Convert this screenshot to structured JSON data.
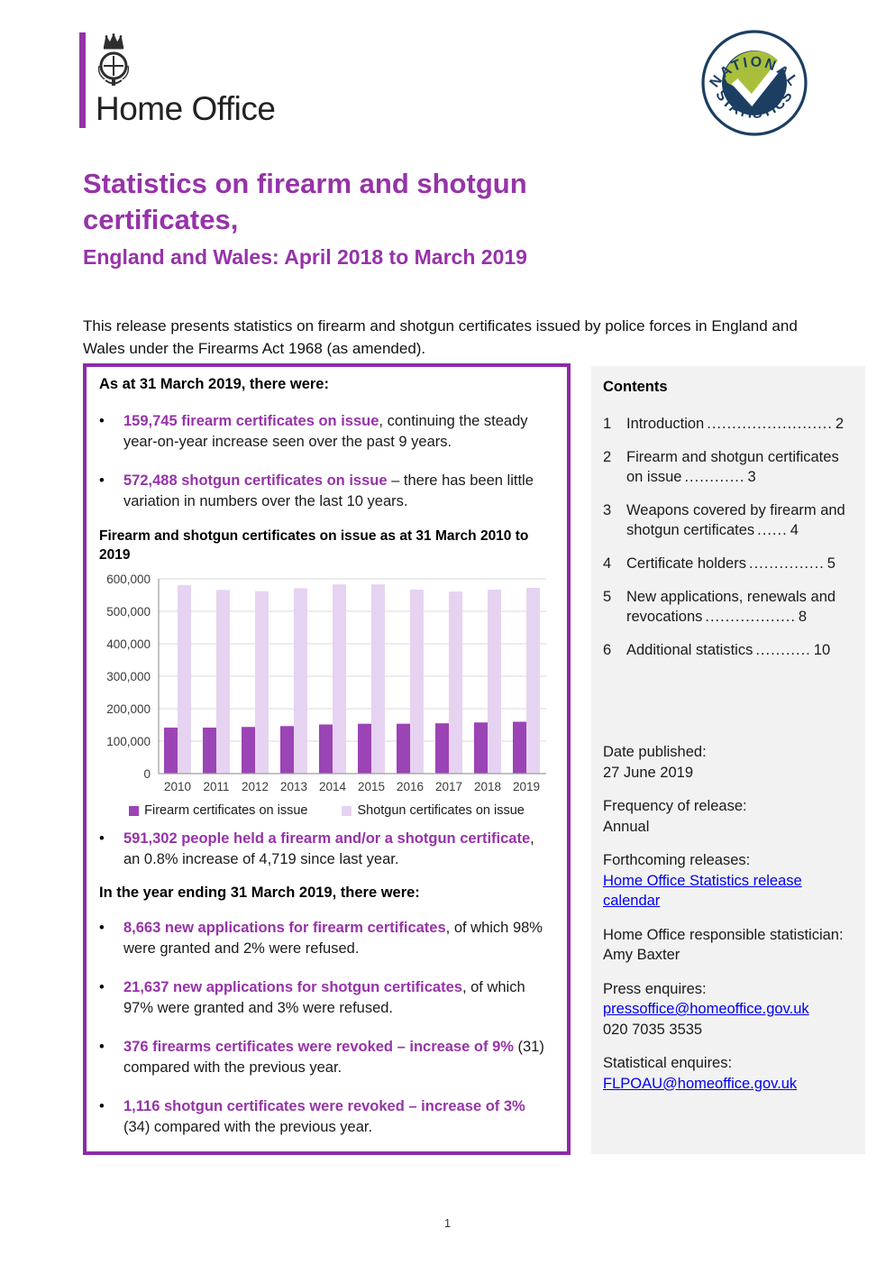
{
  "colors": {
    "accent_purple": "#9633a8",
    "box_border_purple": "#8d2ba6",
    "bar_firearm": "#9b44b5",
    "bar_shotgun": "#e6d3f1",
    "panel_gray": "#f2f2f2",
    "link_blue": "#0000ee",
    "badge_navy": "#1c3e63",
    "badge_green": "#a9bf3c"
  },
  "header": {
    "brand": "Home Office",
    "crest_icon": "royal-crest-icon",
    "badge_icon": "national-statistics-badge-icon",
    "badge_top": "NATIONAL",
    "badge_bottom": "STATISTICS"
  },
  "title": {
    "line1": "Statistics on firearm and shotgun",
    "line2": "certificates,",
    "subtitle": "England and Wales: April 2018 to March 2019"
  },
  "intro": "This release presents statistics on firearm and shotgun certificates issued by police forces in England and Wales under the Firearms Act 1968 (as amended).",
  "key_points": {
    "heading1": "As at 31 March 2019, there were:",
    "bullets1": [
      {
        "lead": "159,745 firearm certificates on issue",
        "rest": ", continuing the steady year-on-year increase seen over the past 9 years."
      },
      {
        "lead": "572,488 shotgun certificates on issue",
        "rest": " – there has been little variation in numbers over the last 10 years."
      }
    ],
    "bullets2": [
      {
        "lead": "591,302 people held a firearm and/or a shotgun certificate",
        "rest": ", an 0.8% increase of 4,719 since last year."
      }
    ],
    "heading2": "In the year ending 31 March 2019, there were:",
    "bullets3": [
      {
        "lead": "8,663 new applications for firearm certificates",
        "rest": ", of which 98% were granted and 2% were refused."
      },
      {
        "lead": "21,637 new applications for shotgun certificates",
        "rest": ", of which 97% were granted and 3% were refused."
      },
      {
        "lead": "376 firearms certificates were revoked – increase of 9%",
        "rest": " (31) compared with the previous year."
      },
      {
        "lead": "1,116 shotgun certificates were revoked – increase of 3%",
        "rest": " (34) compared with the previous year."
      }
    ]
  },
  "chart_data": {
    "type": "bar",
    "title": "Firearm and shotgun certificates on issue as at 31 March 2010 to 2019",
    "categories": [
      "2010",
      "2011",
      "2012",
      "2013",
      "2014",
      "2015",
      "2016",
      "2017",
      "2018",
      "2019"
    ],
    "series": [
      {
        "name": "Firearm certificates on issue",
        "color": "#9b44b5",
        "values": [
          141800,
          141800,
          143800,
          146400,
          151400,
          153600,
          153700,
          155000,
          157600,
          159745
        ]
      },
      {
        "name": "Shotgun certificates on issue",
        "color": "#e6d3f1",
        "values": [
          581000,
          566000,
          562000,
          571000,
          583000,
          583000,
          567000,
          561000,
          567000,
          572488
        ]
      }
    ],
    "xlabel": "",
    "ylabel": "",
    "ylim": [
      0,
      600000
    ],
    "ytick_step": 100000,
    "grid": true,
    "legend_position": "bottom"
  },
  "sidebar": {
    "contents_heading": "Contents",
    "items": [
      {
        "num": "1",
        "label": "Introduction",
        "leader": ".........................",
        "page": "2"
      },
      {
        "num": "2",
        "label": "Firearm and shotgun certificates on issue",
        "leader": "............",
        "page": "3"
      },
      {
        "num": "3",
        "label": "Weapons covered by firearm and shotgun certificates",
        "leader": "......",
        "page": "4"
      },
      {
        "num": "4",
        "label": "Certificate holders",
        "leader": "...............",
        "page": "5"
      },
      {
        "num": "5",
        "label": "New applications, renewals and revocations",
        "leader": "..................",
        "page": "8"
      },
      {
        "num": "6",
        "label": "Additional statistics",
        "leader": "...........",
        "page": "10"
      }
    ],
    "info": {
      "date_label": "Date published:",
      "date_value": "27 June 2019",
      "freq_label": "Frequency of release:",
      "freq_value": "Annual",
      "forthcoming_label": "Forthcoming releases:",
      "forthcoming_link": "Home Office Statistics release calendar",
      "statistician_label": "Home Office responsible statistician:",
      "statistician_value": "Amy Baxter",
      "press_label": "Press enquires:",
      "press_link": "pressoffice@homeoffice.gov.uk",
      "press_phone": "020 7035 3535",
      "stats_label": "Statistical enquires:",
      "stats_link": "FLPOAU@homeoffice.gov.uk"
    }
  },
  "page_number": "1"
}
